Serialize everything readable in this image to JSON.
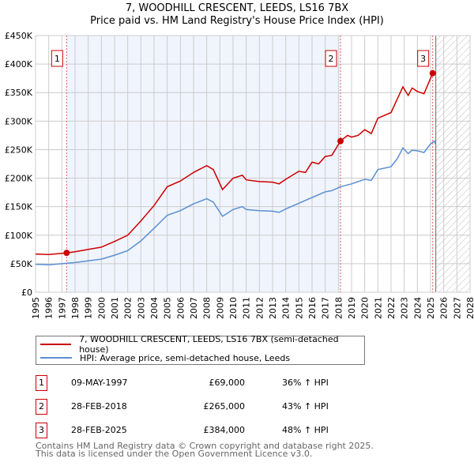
{
  "title": "7, WOODHILL CRESCENT, LEEDS, LS16 7BX",
  "subtitle": "Price paid vs. HM Land Registry's House Price Index (HPI)",
  "chart_data": {
    "type": "line",
    "ylim": [
      0,
      450000
    ],
    "xlim": [
      1995,
      2028
    ],
    "yticks": [
      0,
      50000,
      100000,
      150000,
      200000,
      250000,
      300000,
      350000,
      400000,
      450000
    ],
    "ytick_labels": [
      "£0",
      "£50K",
      "£100K",
      "£150K",
      "£200K",
      "£250K",
      "£300K",
      "£350K",
      "£400K",
      "£450K"
    ],
    "xticks": [
      1995,
      1996,
      1997,
      1998,
      1999,
      2000,
      2001,
      2002,
      2003,
      2004,
      2005,
      2006,
      2007,
      2008,
      2009,
      2010,
      2011,
      2012,
      2013,
      2014,
      2015,
      2016,
      2017,
      2018,
      2019,
      2020,
      2021,
      2022,
      2023,
      2024,
      2025,
      2026,
      2027,
      2028
    ],
    "grid": true,
    "shaded_range": [
      1997.36,
      2018.16
    ],
    "forecast_hatch_from": 2025.4,
    "series": [
      {
        "name": "7, WOODHILL CRESCENT, LEEDS, LS16 7BX (semi-detached house)",
        "color": "#cc0000",
        "x": [
          1995,
          1996,
          1997.36,
          1998,
          1999,
          2000,
          2001,
          2002,
          2003,
          2004,
          2005,
          2006,
          2007,
          2008,
          2008.5,
          2009.2,
          2010,
          2010.7,
          2011,
          2012,
          2013,
          2013.5,
          2014,
          2015,
          2015.5,
          2016,
          2016.5,
          2017,
          2017.5,
          2018.16,
          2018.7,
          2019,
          2019.5,
          2020,
          2020.5,
          2021,
          2021.5,
          2022,
          2022.5,
          2022.9,
          2023.3,
          2023.6,
          2024,
          2024.5,
          2025.16,
          2025.3
        ],
        "y": [
          67000,
          66000,
          69000,
          71000,
          75000,
          79000,
          89000,
          100000,
          125000,
          152000,
          185000,
          195000,
          210000,
          222000,
          215000,
          180000,
          200000,
          205000,
          197000,
          194000,
          193000,
          190000,
          198000,
          212000,
          210000,
          228000,
          225000,
          238000,
          240000,
          265000,
          275000,
          272000,
          275000,
          285000,
          278000,
          305000,
          310000,
          315000,
          340000,
          360000,
          345000,
          358000,
          352000,
          348000,
          384000,
          388000
        ]
      },
      {
        "name": "HPI: Average price, semi-detached house, Leeds",
        "color": "#5b8fd0",
        "x": [
          1995,
          1996,
          1997,
          1998,
          1999,
          2000,
          2001,
          2002,
          2003,
          2004,
          2005,
          2006,
          2007,
          2008,
          2008.5,
          2009.2,
          2010,
          2010.7,
          2011,
          2012,
          2013,
          2013.5,
          2014,
          2015,
          2016,
          2017,
          2017.5,
          2018.16,
          2019,
          2020,
          2020.5,
          2021,
          2022,
          2022.5,
          2022.9,
          2023.3,
          2023.6,
          2024,
          2024.5,
          2025,
          2025.3,
          2025.4
        ],
        "y": [
          49000,
          48000,
          50000,
          52000,
          55000,
          58000,
          65000,
          73000,
          90000,
          112000,
          135000,
          143000,
          155000,
          164000,
          158000,
          133000,
          145000,
          150000,
          145000,
          143000,
          142000,
          140000,
          146000,
          156000,
          166000,
          176000,
          178000,
          185000,
          190000,
          198000,
          196000,
          215000,
          220000,
          235000,
          253000,
          243000,
          249000,
          248000,
          245000,
          260000,
          265000,
          258000
        ]
      }
    ],
    "sales": [
      {
        "label": "1",
        "x": 1997.36,
        "y": 69000
      },
      {
        "label": "2",
        "x": 2018.16,
        "y": 265000
      },
      {
        "label": "3",
        "x": 2025.16,
        "y": 384000
      }
    ]
  },
  "legend": [
    "7, WOODHILL CRESCENT, LEEDS, LS16 7BX (semi-detached house)",
    "HPI: Average price, semi-detached house, Leeds"
  ],
  "table": [
    {
      "num": "1",
      "date": "09-MAY-1997",
      "price": "£69,000",
      "hpi": "36% ↑ HPI"
    },
    {
      "num": "2",
      "date": "28-FEB-2018",
      "price": "£265,000",
      "hpi": "43% ↑ HPI"
    },
    {
      "num": "3",
      "date": "28-FEB-2025",
      "price": "£384,000",
      "hpi": "48% ↑ HPI"
    }
  ],
  "footer": [
    "Contains HM Land Registry data © Crown copyright and database right 2025.",
    "This data is licensed under the Open Government Licence v3.0."
  ]
}
